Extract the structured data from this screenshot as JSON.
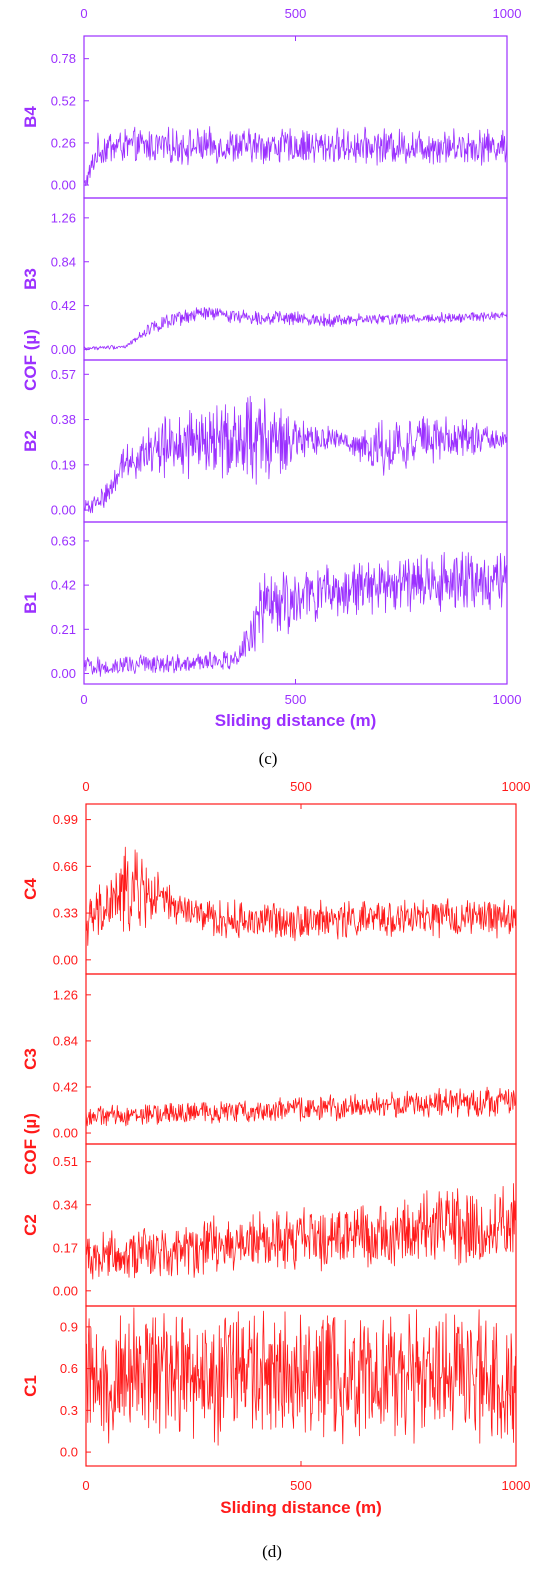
{
  "chart_data": [
    {
      "type": "line",
      "caption": "(c)",
      "color": "#9b30ff",
      "xlabel": "Sliding distance (m)",
      "ylabel": "COF (µ)",
      "xlim": [
        0,
        1000
      ],
      "x_ticks": [
        "0",
        "500",
        "1000"
      ],
      "panels": [
        {
          "name": "B4",
          "ylim": [
            -0.08,
            0.92
          ],
          "y_ticks": [
            "0.00",
            "0.26",
            "0.52",
            "0.78"
          ],
          "profile": [
            [
              0,
              0.0
            ],
            [
              10,
              0.05
            ],
            [
              30,
              0.2
            ],
            [
              60,
              0.24
            ],
            [
              1000,
              0.24
            ]
          ],
          "amplitude": [
            [
              0,
              0.05
            ],
            [
              30,
              0.18
            ],
            [
              1000,
              0.18
            ]
          ]
        },
        {
          "name": "B3",
          "ylim": [
            -0.1,
            1.45
          ],
          "y_ticks": [
            "0.00",
            "0.42",
            "0.84",
            "1.26"
          ],
          "profile": [
            [
              0,
              0.01
            ],
            [
              100,
              0.03
            ],
            [
              160,
              0.22
            ],
            [
              280,
              0.35
            ],
            [
              400,
              0.31
            ],
            [
              600,
              0.28
            ],
            [
              1000,
              0.32
            ]
          ],
          "amplitude": [
            [
              0,
              0.03
            ],
            [
              120,
              0.04
            ],
            [
              160,
              0.12
            ],
            [
              1000,
              0.08
            ]
          ]
        },
        {
          "name": "B2",
          "ylim": [
            -0.05,
            0.63
          ],
          "y_ticks": [
            "0.00",
            "0.19",
            "0.38",
            "0.57"
          ],
          "profile": [
            [
              0,
              0.01
            ],
            [
              30,
              0.03
            ],
            [
              60,
              0.08
            ],
            [
              90,
              0.2
            ],
            [
              200,
              0.27
            ],
            [
              400,
              0.3
            ],
            [
              500,
              0.28
            ],
            [
              600,
              0.3
            ],
            [
              680,
              0.25
            ],
            [
              800,
              0.3
            ],
            [
              1000,
              0.3
            ]
          ],
          "amplitude": [
            [
              0,
              0.04
            ],
            [
              90,
              0.12
            ],
            [
              200,
              0.22
            ],
            [
              420,
              0.3
            ],
            [
              540,
              0.12
            ],
            [
              620,
              0.05
            ],
            [
              700,
              0.2
            ],
            [
              850,
              0.16
            ],
            [
              1000,
              0.05
            ]
          ]
        },
        {
          "name": "B1",
          "ylim": [
            -0.05,
            0.72
          ],
          "y_ticks": [
            "0.00",
            "0.21",
            "0.42",
            "0.63"
          ],
          "profile": [
            [
              0,
              0.03
            ],
            [
              350,
              0.06
            ],
            [
              390,
              0.15
            ],
            [
              430,
              0.32
            ],
            [
              600,
              0.4
            ],
            [
              1000,
              0.45
            ]
          ],
          "amplitude": [
            [
              0,
              0.08
            ],
            [
              350,
              0.08
            ],
            [
              400,
              0.2
            ],
            [
              420,
              0.28
            ],
            [
              600,
              0.2
            ],
            [
              1000,
              0.24
            ]
          ]
        }
      ]
    },
    {
      "type": "line",
      "caption": "(d)",
      "color": "#ff1a1a",
      "xlabel": "Sliding distance (m)",
      "ylabel": "COF (µ)",
      "xlim": [
        0,
        1000
      ],
      "x_ticks": [
        "0",
        "500",
        "1000"
      ],
      "panels": [
        {
          "name": "C4",
          "ylim": [
            -0.1,
            1.1
          ],
          "y_ticks": [
            "0.00",
            "0.33",
            "0.66",
            "0.99"
          ],
          "profile": [
            [
              0,
              0.25
            ],
            [
              80,
              0.45
            ],
            [
              120,
              0.5
            ],
            [
              200,
              0.38
            ],
            [
              300,
              0.28
            ],
            [
              500,
              0.28
            ],
            [
              1000,
              0.3
            ]
          ],
          "amplitude": [
            [
              0,
              0.25
            ],
            [
              100,
              0.55
            ],
            [
              200,
              0.2
            ],
            [
              300,
              0.22
            ],
            [
              1000,
              0.22
            ]
          ]
        },
        {
          "name": "C3",
          "ylim": [
            -0.1,
            1.45
          ],
          "y_ticks": [
            "0.00",
            "0.42",
            "0.84",
            "1.26"
          ],
          "profile": [
            [
              0,
              0.15
            ],
            [
              500,
              0.22
            ],
            [
              1000,
              0.3
            ]
          ],
          "amplitude": [
            [
              0,
              0.15
            ],
            [
              1000,
              0.22
            ]
          ]
        },
        {
          "name": "C2",
          "ylim": [
            -0.06,
            0.58
          ],
          "y_ticks": [
            "0.00",
            "0.17",
            "0.34",
            "0.51"
          ],
          "profile": [
            [
              0,
              0.14
            ],
            [
              500,
              0.2
            ],
            [
              1000,
              0.27
            ]
          ],
          "amplitude": [
            [
              0,
              0.16
            ],
            [
              500,
              0.2
            ],
            [
              1000,
              0.28
            ]
          ]
        },
        {
          "name": "C1",
          "ylim": [
            -0.1,
            1.05
          ],
          "y_ticks": [
            "0.0",
            "0.3",
            "0.6",
            "0.9"
          ],
          "profile": [
            [
              0,
              0.55
            ],
            [
              1000,
              0.55
            ]
          ],
          "amplitude": [
            [
              0,
              0.75
            ],
            [
              1000,
              0.75
            ]
          ]
        }
      ]
    }
  ]
}
